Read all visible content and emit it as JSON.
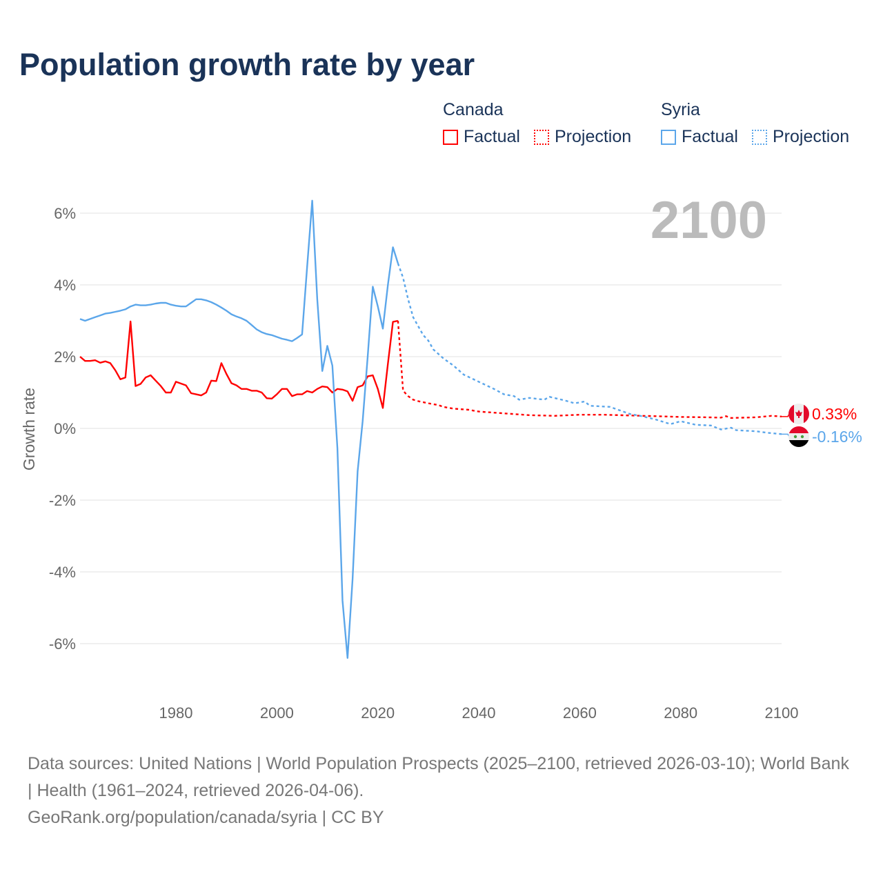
{
  "title": "Population growth rate by year",
  "legend": {
    "groups": [
      {
        "name": "Canada",
        "factual": "Factual",
        "projection": "Projection",
        "color": "#ff0000"
      },
      {
        "name": "Syria",
        "factual": "Factual",
        "projection": "Projection",
        "color": "#5ba6ea"
      }
    ]
  },
  "current_year": "2100",
  "footer": {
    "sources": "Data sources: United Nations | World Population Prospects (2025–2100, retrieved 2026-03-10); World Bank | Health (1961–2024, retrieved 2026-04-06).",
    "credit": "GeoRank.org/population/canada/syria | CC BY"
  },
  "chart_data": {
    "type": "line",
    "title": "Population growth rate by year",
    "xlabel": "",
    "ylabel": "Growth rate",
    "xlim": [
      1961,
      2100
    ],
    "ylim": [
      -7.5,
      7
    ],
    "x_ticks": [
      1980,
      2000,
      2020,
      2040,
      2060,
      2080,
      2100
    ],
    "y_ticks": [
      6,
      4,
      2,
      0,
      -2,
      -4,
      -6
    ],
    "y_tick_labels": [
      "6%",
      "4%",
      "2%",
      "0%",
      "-2%",
      "-4%",
      "-6%"
    ],
    "grid": true,
    "series": [
      {
        "name": "Canada",
        "kind": "Factual",
        "color": "#ff0000",
        "x": [
          1961,
          1962,
          1963,
          1964,
          1965,
          1966,
          1967,
          1968,
          1969,
          1970,
          1971,
          1972,
          1973,
          1974,
          1975,
          1976,
          1977,
          1978,
          1979,
          1980,
          1981,
          1982,
          1983,
          1984,
          1985,
          1986,
          1987,
          1988,
          1989,
          1990,
          1991,
          1992,
          1993,
          1994,
          1995,
          1996,
          1997,
          1998,
          1999,
          2000,
          2001,
          2002,
          2003,
          2004,
          2005,
          2006,
          2007,
          2008,
          2009,
          2010,
          2011,
          2012,
          2013,
          2014,
          2015,
          2016,
          2017,
          2018,
          2019,
          2020,
          2021,
          2022,
          2023,
          2024
        ],
        "y": [
          2.0,
          1.88,
          1.88,
          1.9,
          1.83,
          1.87,
          1.82,
          1.62,
          1.37,
          1.42,
          2.98,
          1.18,
          1.24,
          1.42,
          1.48,
          1.33,
          1.18,
          1.0,
          1.0,
          1.3,
          1.25,
          1.2,
          0.98,
          0.95,
          0.92,
          1.0,
          1.33,
          1.32,
          1.82,
          1.52,
          1.26,
          1.2,
          1.1,
          1.1,
          1.05,
          1.05,
          1.0,
          0.84,
          0.83,
          0.95,
          1.1,
          1.1,
          0.9,
          0.95,
          0.95,
          1.04,
          1.0,
          1.1,
          1.17,
          1.15,
          1.0,
          1.1,
          1.08,
          1.03,
          0.77,
          1.15,
          1.2,
          1.45,
          1.48,
          1.1,
          0.57,
          1.8,
          2.97,
          3.0
        ]
      },
      {
        "name": "Canada",
        "kind": "Projection",
        "color": "#ff0000",
        "x": [
          2024,
          2025,
          2026,
          2027,
          2028,
          2030,
          2032,
          2033,
          2035,
          2038,
          2040,
          2045,
          2050,
          2055,
          2058,
          2060,
          2065,
          2070,
          2075,
          2080,
          2085,
          2088,
          2089,
          2090,
          2095,
          2098,
          2100
        ],
        "y": [
          3.0,
          1.05,
          0.9,
          0.8,
          0.76,
          0.7,
          0.65,
          0.6,
          0.55,
          0.52,
          0.47,
          0.42,
          0.37,
          0.35,
          0.37,
          0.38,
          0.38,
          0.36,
          0.34,
          0.32,
          0.31,
          0.3,
          0.34,
          0.29,
          0.31,
          0.35,
          0.33
        ]
      },
      {
        "name": "Syria",
        "kind": "Factual",
        "color": "#5ba6ea",
        "x": [
          1961,
          1962,
          1963,
          1964,
          1965,
          1966,
          1967,
          1968,
          1969,
          1970,
          1971,
          1972,
          1973,
          1974,
          1975,
          1976,
          1977,
          1978,
          1979,
          1980,
          1981,
          1982,
          1983,
          1984,
          1985,
          1986,
          1987,
          1988,
          1989,
          1990,
          1991,
          1992,
          1993,
          1994,
          1995,
          1996,
          1997,
          1998,
          1999,
          2000,
          2001,
          2002,
          2003,
          2004,
          2005,
          2006,
          2007,
          2008,
          2009,
          2010,
          2011,
          2012,
          2013,
          2014,
          2015,
          2016,
          2017,
          2018,
          2019,
          2020,
          2021,
          2022,
          2023,
          2024
        ],
        "y": [
          3.05,
          3.0,
          3.05,
          3.1,
          3.15,
          3.2,
          3.22,
          3.25,
          3.28,
          3.32,
          3.4,
          3.45,
          3.43,
          3.43,
          3.45,
          3.48,
          3.5,
          3.5,
          3.45,
          3.42,
          3.4,
          3.4,
          3.5,
          3.6,
          3.6,
          3.57,
          3.52,
          3.45,
          3.37,
          3.28,
          3.18,
          3.12,
          3.07,
          3.0,
          2.88,
          2.76,
          2.68,
          2.63,
          2.6,
          2.55,
          2.5,
          2.47,
          2.43,
          2.52,
          2.62,
          4.5,
          6.35,
          3.6,
          1.6,
          2.3,
          1.75,
          -0.55,
          -4.8,
          -6.4,
          -4.2,
          -1.2,
          0.2,
          2.0,
          3.95,
          3.4,
          2.78,
          4.0,
          5.05,
          4.6
        ]
      },
      {
        "name": "Syria",
        "kind": "Projection",
        "color": "#5ba6ea",
        "x": [
          2024,
          2025,
          2026,
          2027,
          2028,
          2029,
          2030,
          2031,
          2033,
          2035,
          2037,
          2040,
          2043,
          2045,
          2047,
          2048,
          2050,
          2053,
          2054,
          2057,
          2059,
          2061,
          2062,
          2066,
          2068,
          2070,
          2072,
          2075,
          2078,
          2080,
          2083,
          2086,
          2088,
          2090,
          2091,
          2095,
          2097,
          2100
        ],
        "y": [
          4.6,
          4.2,
          3.6,
          3.1,
          2.85,
          2.6,
          2.45,
          2.2,
          1.95,
          1.75,
          1.5,
          1.3,
          1.1,
          0.95,
          0.9,
          0.8,
          0.85,
          0.8,
          0.88,
          0.78,
          0.7,
          0.75,
          0.63,
          0.6,
          0.5,
          0.4,
          0.35,
          0.25,
          0.12,
          0.2,
          0.1,
          0.08,
          -0.03,
          0.02,
          -0.05,
          -0.08,
          -0.12,
          -0.16
        ]
      }
    ],
    "end_labels": [
      {
        "country": "Canada",
        "value": "0.33%",
        "color": "#ff0000",
        "flag": "canada-flag"
      },
      {
        "country": "Syria",
        "value": "-0.16%",
        "color": "#5ba6ea",
        "flag": "syria-flag"
      }
    ]
  }
}
